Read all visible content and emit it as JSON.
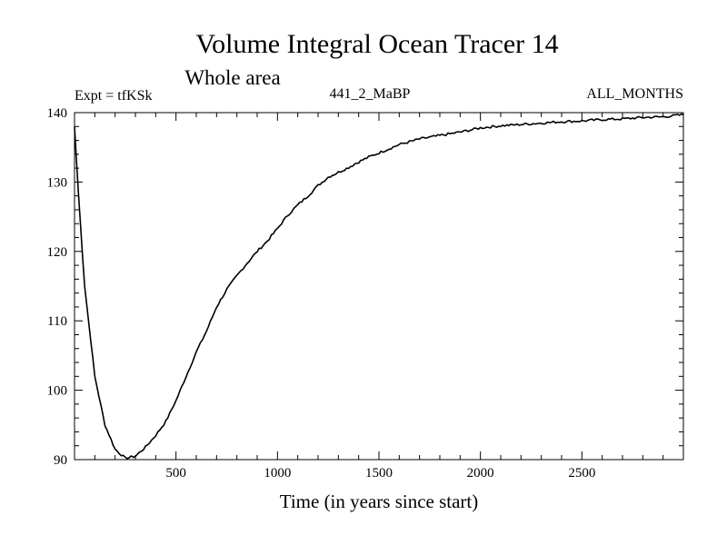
{
  "chart_data": {
    "type": "line",
    "title": "Volume Integral Ocean Tracer 14",
    "subtitle": "Whole area",
    "expt_label": "Expt = tfKSk",
    "run_label": "441_2_MaBP",
    "months_label": "ALL_MONTHS",
    "xlabel": "Time (in years since start)",
    "ylabel": "",
    "xlim": [
      0,
      3000
    ],
    "ylim": [
      90,
      140
    ],
    "x_ticks": [
      500,
      1000,
      1500,
      2000,
      2500
    ],
    "y_ticks": [
      90,
      100,
      110,
      120,
      130,
      140
    ],
    "grid": false,
    "series": [
      {
        "name": "Tracer 14",
        "x": [
          0,
          20,
          50,
          100,
          150,
          200,
          250,
          300,
          350,
          400,
          450,
          500,
          550,
          600,
          650,
          700,
          750,
          800,
          850,
          900,
          950,
          1000,
          1050,
          1100,
          1150,
          1200,
          1250,
          1300,
          1350,
          1400,
          1450,
          1500,
          1600,
          1700,
          1800,
          1900,
          2000,
          2100,
          2200,
          2300,
          2400,
          2500,
          2600,
          2700,
          2800,
          2900,
          3000
        ],
        "values": [
          138,
          128,
          115,
          102,
          95,
          91.5,
          90.2,
          90.5,
          91.8,
          93.5,
          95.5,
          98.5,
          102,
          105.5,
          108.5,
          112,
          114.5,
          116.5,
          118.3,
          120,
          121.5,
          123.3,
          125.2,
          126.7,
          128,
          129.5,
          130.7,
          131.4,
          132.1,
          132.9,
          133.6,
          134.2,
          135.4,
          136.2,
          136.7,
          137.2,
          137.8,
          138.1,
          138.3,
          138.5,
          138.7,
          138.8,
          139.0,
          139.1,
          139.3,
          139.4,
          139.7
        ]
      }
    ]
  }
}
